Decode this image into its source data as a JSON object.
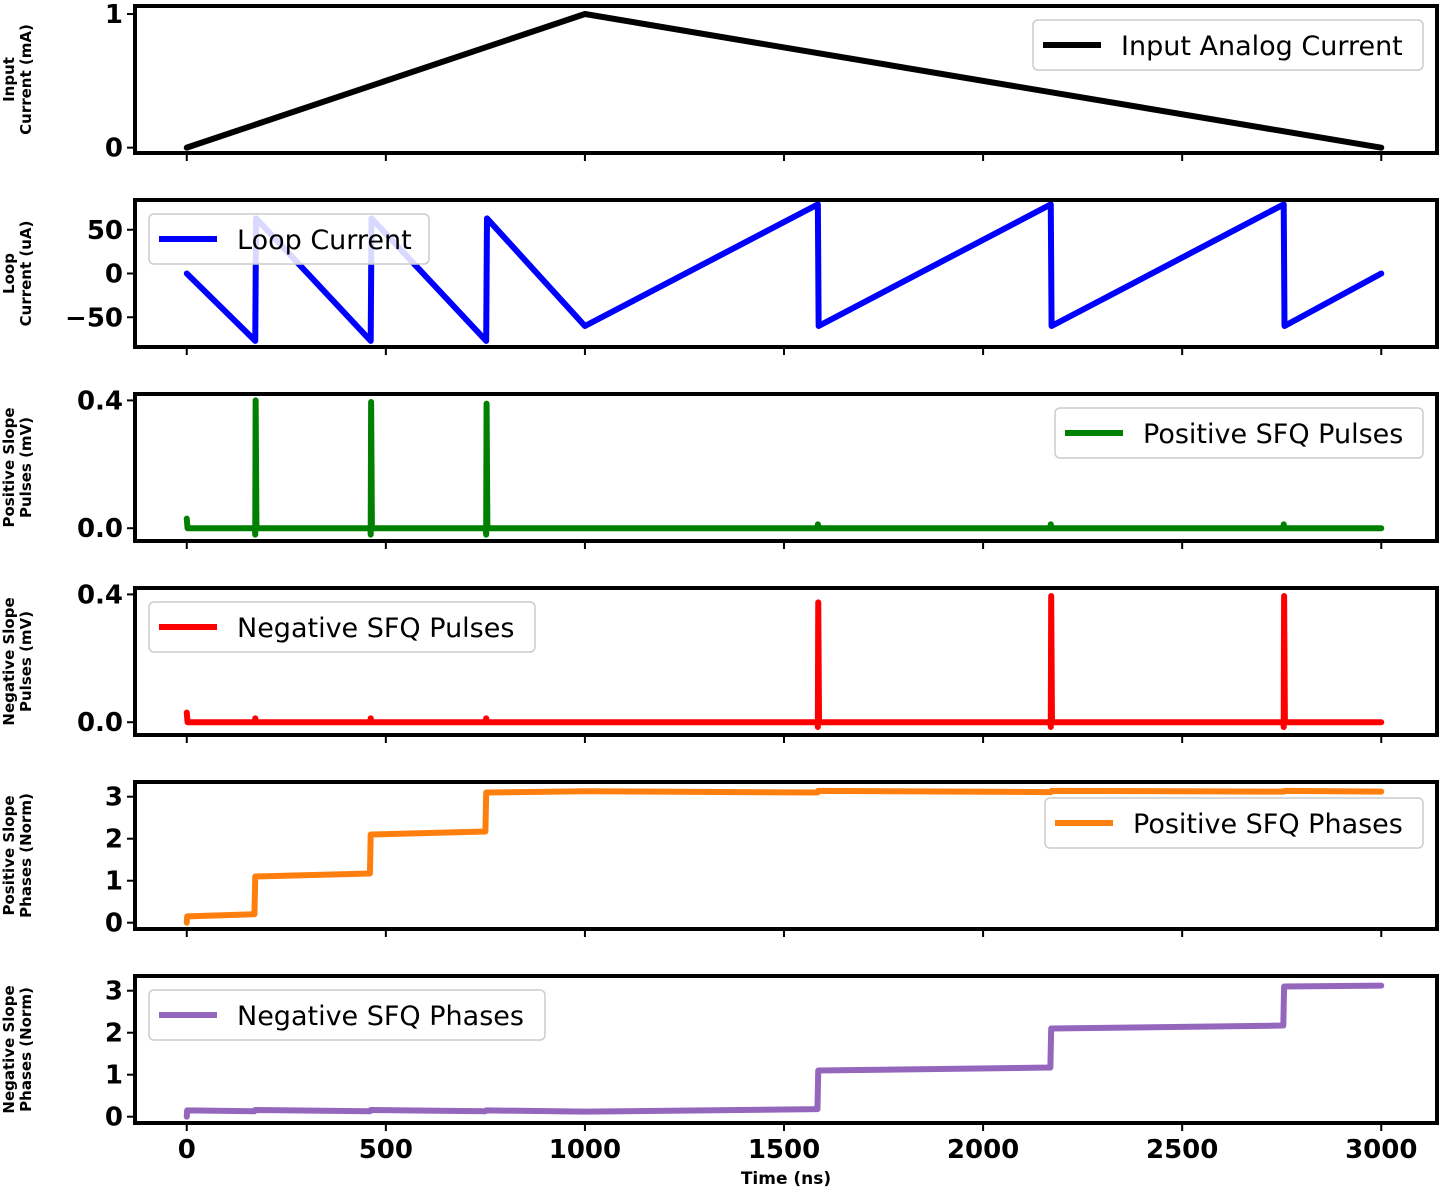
{
  "chart_data": {
    "type": "line",
    "xlabel": "Time (ns)",
    "xlim": [
      -130,
      3140
    ],
    "xticks": [
      0,
      500,
      1000,
      1500,
      2000,
      2500,
      3000
    ],
    "xtick_labels": [
      "0",
      "500",
      "1000",
      "1500",
      "2000",
      "2500",
      "3000"
    ],
    "grid": false,
    "panels": [
      {
        "id": "input",
        "ylabel_lines": [
          "Input",
          "Current (mA)"
        ],
        "ylim": [
          -0.04,
          1.06
        ],
        "yticks": [
          0,
          1
        ],
        "ytick_labels": [
          "0",
          "1"
        ],
        "legend_position": "top-right",
        "series": [
          {
            "name": "Input Analog Current",
            "color": "#000000",
            "points": [
              [
                0,
                0
              ],
              [
                1000,
                1.0
              ],
              [
                3000,
                0
              ]
            ]
          }
        ]
      },
      {
        "id": "loop",
        "ylabel_lines": [
          "Loop",
          "Current (uA)"
        ],
        "ylim": [
          -84,
          84
        ],
        "yticks": [
          50,
          0,
          -50
        ],
        "ytick_labels": [
          "50",
          "0",
          "−50"
        ],
        "legend_position": "top-left",
        "series": [
          {
            "name": "Loop Current",
            "color": "#0000ff",
            "points": [
              [
                0,
                0
              ],
              [
                172,
                -77
              ],
              [
                174,
                63
              ],
              [
                462,
                -77
              ],
              [
                464,
                63
              ],
              [
                752,
                -77
              ],
              [
                754,
                63
              ],
              [
                1000,
                -60
              ],
              [
                1585,
                79
              ],
              [
                1587,
                -60
              ],
              [
                2170,
                79
              ],
              [
                2172,
                -60
              ],
              [
                2755,
                79
              ],
              [
                2757,
                -60
              ],
              [
                3000,
                0
              ]
            ]
          }
        ]
      },
      {
        "id": "pos-pulses",
        "ylabel_lines": [
          "Positive Slope",
          "Pulses (mV)"
        ],
        "ylim": [
          -0.04,
          0.42
        ],
        "yticks": [
          0.4,
          0.0
        ],
        "ytick_labels": [
          "0.4",
          "0.0"
        ],
        "legend_position": "top-right",
        "series": [
          {
            "name": "Positive SFQ Pulses",
            "color": "#008000",
            "points": [
              [
                0,
                0.03
              ],
              [
                2,
                0
              ],
              [
                171,
                0
              ],
              [
                172,
                -0.02
              ],
              [
                173,
                0.4
              ],
              [
                175,
                0
              ],
              [
                461,
                0
              ],
              [
                462,
                -0.02
              ],
              [
                463,
                0.395
              ],
              [
                465,
                0
              ],
              [
                751,
                0
              ],
              [
                752,
                -0.02
              ],
              [
                753,
                0.39
              ],
              [
                755,
                0
              ],
              [
                1584,
                0
              ],
              [
                1585,
                0.012
              ],
              [
                1587,
                0
              ],
              [
                2169,
                0
              ],
              [
                2170,
                0.012
              ],
              [
                2172,
                0
              ],
              [
                2754,
                0
              ],
              [
                2755,
                0.012
              ],
              [
                2757,
                0
              ],
              [
                3000,
                0
              ]
            ]
          }
        ]
      },
      {
        "id": "neg-pulses",
        "ylabel_lines": [
          "Negative Slope",
          "Pulses (mV)"
        ],
        "ylim": [
          -0.04,
          0.42
        ],
        "yticks": [
          0.4,
          0.0
        ],
        "ytick_labels": [
          "0.4",
          "0.0"
        ],
        "legend_position": "top-left",
        "series": [
          {
            "name": "Negative SFQ Pulses",
            "color": "#ff0000",
            "points": [
              [
                0,
                0.03
              ],
              [
                2,
                0
              ],
              [
                171,
                0
              ],
              [
                172,
                0.012
              ],
              [
                174,
                0
              ],
              [
                461,
                0
              ],
              [
                462,
                0.012
              ],
              [
                464,
                0
              ],
              [
                751,
                0
              ],
              [
                752,
                0.012
              ],
              [
                754,
                0
              ],
              [
                1584,
                0
              ],
              [
                1585,
                -0.015
              ],
              [
                1586,
                0.375
              ],
              [
                1588,
                0
              ],
              [
                2169,
                0
              ],
              [
                2170,
                -0.015
              ],
              [
                2171,
                0.395
              ],
              [
                2173,
                0
              ],
              [
                2754,
                0
              ],
              [
                2755,
                -0.015
              ],
              [
                2756,
                0.395
              ],
              [
                2758,
                0
              ],
              [
                3000,
                0
              ]
            ]
          }
        ]
      },
      {
        "id": "pos-phases",
        "ylabel_lines": [
          "Positive Slope",
          "Phases (Norm)"
        ],
        "ylim": [
          -0.15,
          3.35
        ],
        "yticks": [
          3,
          2,
          1,
          0
        ],
        "ytick_labels": [
          "3",
          "2",
          "1",
          "0"
        ],
        "legend_position": "center-right",
        "series": [
          {
            "name": "Positive SFQ Phases",
            "color": "#ff7f0e",
            "points": [
              [
                0,
                0.0
              ],
              [
                1,
                0.15
              ],
              [
                170,
                0.2
              ],
              [
                172,
                1.1
              ],
              [
                460,
                1.17
              ],
              [
                462,
                2.1
              ],
              [
                750,
                2.17
              ],
              [
                752,
                3.1
              ],
              [
                1000,
                3.13
              ],
              [
                1584,
                3.1
              ],
              [
                1586,
                3.14
              ],
              [
                2170,
                3.11
              ],
              [
                2172,
                3.14
              ],
              [
                2755,
                3.12
              ],
              [
                2757,
                3.14
              ],
              [
                3000,
                3.12
              ]
            ]
          }
        ]
      },
      {
        "id": "neg-phases",
        "ylabel_lines": [
          "Negative Slope",
          "Phases (Norm)"
        ],
        "ylim": [
          -0.15,
          3.35
        ],
        "yticks": [
          3,
          2,
          1,
          0
        ],
        "ytick_labels": [
          "3",
          "2",
          "1",
          "0"
        ],
        "legend_position": "top-left",
        "series": [
          {
            "name": "Negative SFQ Phases",
            "color": "#9467bd",
            "points": [
              [
                0,
                0.0
              ],
              [
                1,
                0.15
              ],
              [
                170,
                0.13
              ],
              [
                172,
                0.16
              ],
              [
                460,
                0.13
              ],
              [
                462,
                0.16
              ],
              [
                750,
                0.13
              ],
              [
                752,
                0.15
              ],
              [
                1000,
                0.12
              ],
              [
                1584,
                0.18
              ],
              [
                1586,
                1.1
              ],
              [
                2169,
                1.17
              ],
              [
                2171,
                2.1
              ],
              [
                2754,
                2.17
              ],
              [
                2756,
                3.1
              ],
              [
                3000,
                3.12
              ]
            ]
          }
        ]
      }
    ]
  }
}
